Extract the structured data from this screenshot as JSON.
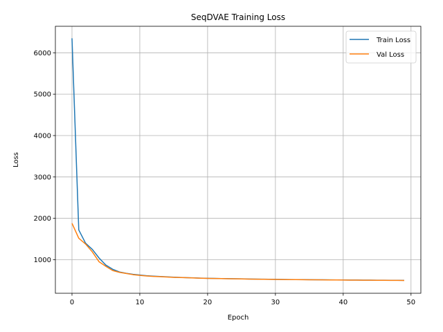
{
  "chart_data": {
    "type": "line",
    "title": "SeqDVAE Training Loss",
    "xlabel": "Epoch",
    "ylabel": "Loss",
    "xlim": [
      -2.45,
      51.45
    ],
    "ylim": [
      190,
      6640
    ],
    "xticks": [
      0,
      10,
      20,
      30,
      40,
      50
    ],
    "yticks": [
      1000,
      2000,
      3000,
      4000,
      5000,
      6000
    ],
    "grid": true,
    "legend_position": "top-right",
    "x": [
      0,
      1,
      2,
      3,
      4,
      5,
      6,
      7,
      8,
      9,
      10,
      11,
      12,
      13,
      14,
      15,
      16,
      17,
      18,
      19,
      20,
      21,
      22,
      23,
      24,
      25,
      26,
      27,
      28,
      29,
      30,
      31,
      32,
      33,
      34,
      35,
      36,
      37,
      38,
      39,
      40,
      41,
      42,
      43,
      44,
      45,
      46,
      47,
      48,
      49
    ],
    "series": [
      {
        "name": "Train Loss",
        "color": "#1f77b4",
        "values": [
          6350,
          1720,
          1400,
          1250,
          1040,
          870,
          770,
          705,
          672,
          648,
          630,
          615,
          604,
          595,
          586,
          578,
          572,
          567,
          562,
          556,
          552,
          549,
          546,
          543,
          540,
          538,
          535,
          533,
          531,
          529,
          527,
          525,
          523,
          521,
          519,
          518,
          516,
          515,
          514,
          512,
          511,
          510,
          509,
          508,
          507,
          506,
          505,
          504,
          503,
          502
        ]
      },
      {
        "name": "Val Loss",
        "color": "#ff7f0e",
        "values": [
          1880,
          1520,
          1380,
          1190,
          950,
          840,
          740,
          695,
          668,
          640,
          622,
          608,
          598,
          590,
          582,
          575,
          570,
          565,
          560,
          554,
          550,
          547,
          544,
          541,
          538,
          536,
          533,
          531,
          529,
          527,
          525,
          523,
          521,
          520,
          518,
          516,
          515,
          513,
          512,
          511,
          509,
          508,
          507,
          506,
          505,
          504,
          503,
          502,
          501,
          500
        ]
      }
    ]
  }
}
